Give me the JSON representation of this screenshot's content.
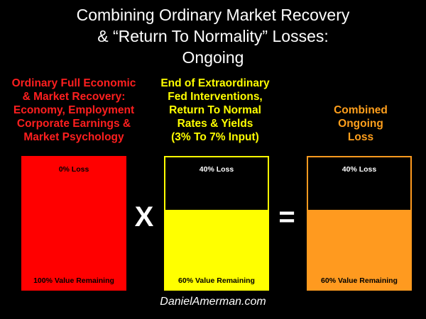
{
  "title": {
    "lines": [
      "Combining Ordinary Market Recovery",
      "& “Return To Normality” Losses:",
      "Ongoing"
    ]
  },
  "columns": [
    {
      "heading_lines": [
        "Ordinary Full Economic",
        "& Market Recovery:",
        "Economy, Employment",
        "Corporate Earnings &",
        "Market Psychology"
      ],
      "loss_label": "0% Loss",
      "remaining_label": "100% Value Remaining",
      "remaining_fraction": 1.0,
      "color": "#ff0000"
    },
    {
      "heading_lines": [
        "End of Extraordinary",
        "Fed Interventions,",
        "Return To Normal",
        "Rates & Yields",
        "(3% To 7% Input)"
      ],
      "loss_label": "40% Loss",
      "remaining_label": "60% Value Remaining",
      "remaining_fraction": 0.6,
      "color": "#ffff00"
    },
    {
      "heading_lines": [
        "Combined",
        "Ongoing",
        "Loss"
      ],
      "loss_label": "40% Loss",
      "remaining_label": "60% Value Remaining",
      "remaining_fraction": 0.6,
      "color": "#ff9a1f"
    }
  ],
  "operators": {
    "times": "X",
    "equals": "="
  },
  "footer": "DanielAmerman.com"
}
